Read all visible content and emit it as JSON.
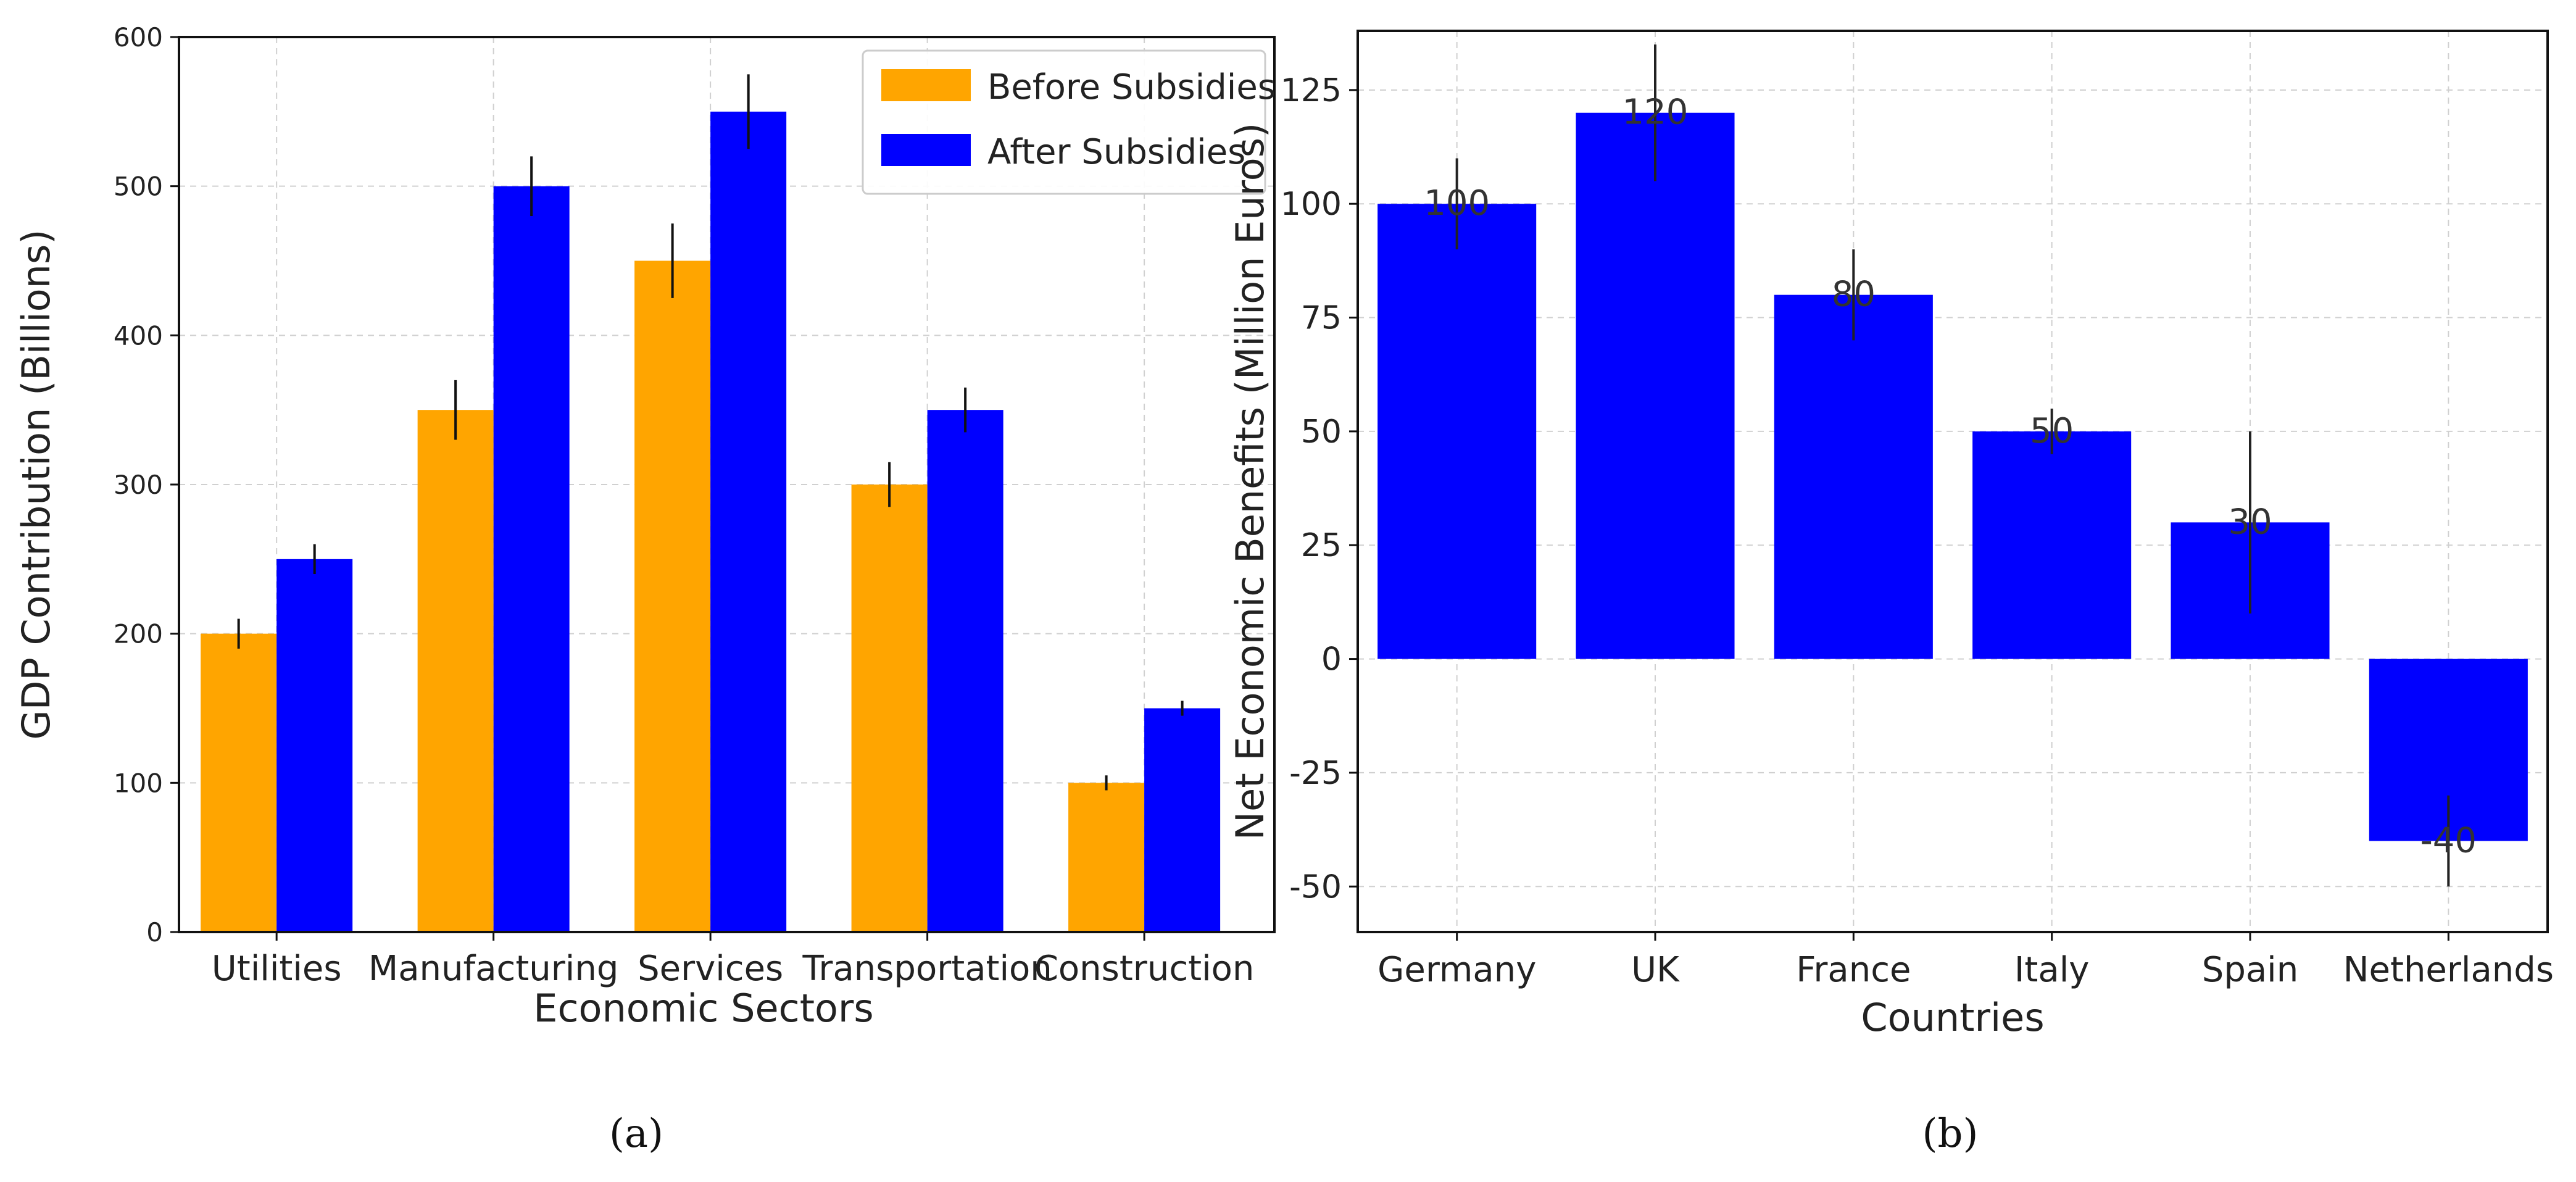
{
  "chart_data": [
    {
      "type": "bar",
      "panel_label": "(a)",
      "categories": [
        "Utilities",
        "Manufacturing",
        "Services",
        "Transportation",
        "Construction"
      ],
      "series": [
        {
          "name": "Before Subsidies",
          "color": "#FFA500",
          "values": [
            200,
            350,
            450,
            300,
            100
          ],
          "errors": [
            10,
            20,
            25,
            15,
            5
          ]
        },
        {
          "name": "After Subsidies",
          "color": "#0000FF",
          "values": [
            250,
            500,
            550,
            350,
            150
          ],
          "errors": [
            10,
            20,
            25,
            15,
            5
          ]
        }
      ],
      "xlabel": "Economic Sectors",
      "ylabel": "GDP Contribution (Billions)",
      "ylim": [
        0,
        600
      ],
      "yticks": [
        0,
        100,
        200,
        300,
        400,
        500,
        600
      ],
      "grid": true,
      "legend": "top-right"
    },
    {
      "type": "bar",
      "panel_label": "(b)",
      "categories": [
        "Germany",
        "UK",
        "France",
        "Italy",
        "Spain",
        "Netherlands"
      ],
      "series": [
        {
          "name": "Net Economic Benefits",
          "color": "#0000FF",
          "values": [
            100,
            120,
            80,
            50,
            30,
            -40
          ],
          "errors": [
            10,
            15,
            10,
            5,
            20,
            10
          ]
        }
      ],
      "data_labels": [
        "100",
        "120",
        "80",
        "50",
        "30",
        "-40"
      ],
      "xlabel": "Countries",
      "ylabel": "Net Economic Benefits (Million Euros)",
      "ylim": [
        -60,
        138
      ],
      "yticks": [
        -50,
        -25,
        0,
        25,
        50,
        75,
        100,
        125
      ],
      "grid": true
    }
  ]
}
